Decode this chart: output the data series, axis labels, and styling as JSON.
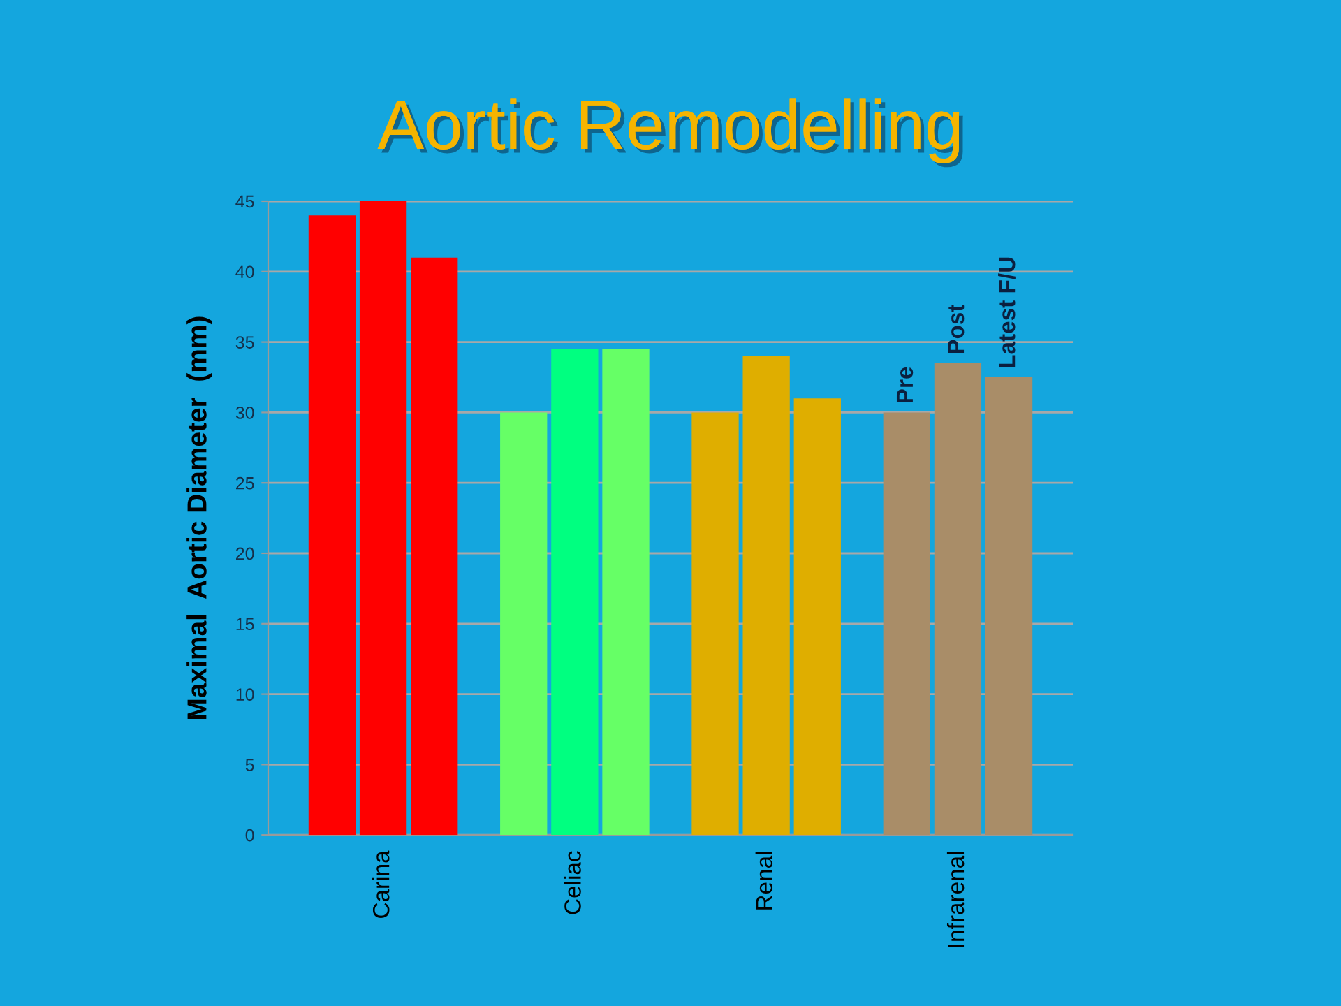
{
  "chart_data": {
    "type": "bar",
    "title": "Aortic Remodelling",
    "ylabel": "Maximal  Aortic Diameter  (mm)",
    "categories": [
      "Carina",
      "Celiac",
      "Renal",
      "Infrarenal"
    ],
    "series": [
      {
        "name": "Pre",
        "colors": [
          "#ff0000",
          "#66ff66",
          "#dfae00",
          "#a98d68"
        ],
        "values": [
          44,
          30,
          30,
          30
        ]
      },
      {
        "name": "Post",
        "colors": [
          "#ff0000",
          "#00ff80",
          "#dfae00",
          "#a98d68"
        ],
        "values": [
          45,
          34.5,
          34,
          33.5
        ]
      },
      {
        "name": "Latest F/U",
        "colors": [
          "#ff0000",
          "#66ff66",
          "#dfae00",
          "#a98d68"
        ],
        "values": [
          41,
          34.5,
          31,
          32.5
        ]
      }
    ],
    "ylim": [
      0,
      45
    ],
    "yticks": [
      0,
      5,
      10,
      15,
      20,
      25,
      30,
      35,
      40,
      45
    ],
    "grid": "y",
    "legend": false
  }
}
